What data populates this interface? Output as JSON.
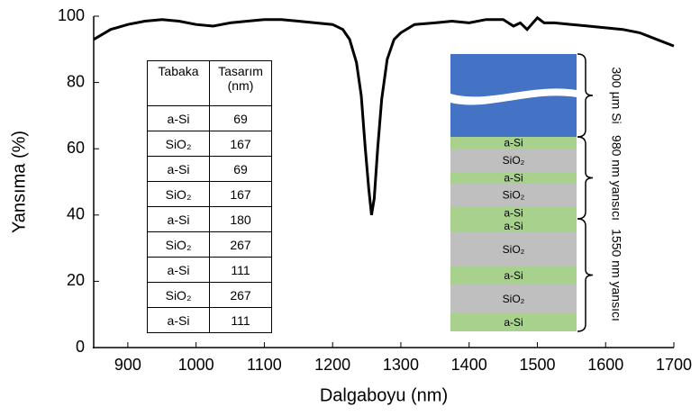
{
  "chart_data": {
    "type": "line",
    "xlabel": "Dalgaboyu (nm)",
    "ylabel": "Yansıma (%)",
    "x": [
      850,
      875,
      900,
      925,
      950,
      975,
      1000,
      1025,
      1050,
      1075,
      1100,
      1125,
      1150,
      1175,
      1200,
      1215,
      1225,
      1235,
      1242,
      1248,
      1253,
      1257,
      1261,
      1266,
      1272,
      1280,
      1290,
      1300,
      1320,
      1350,
      1375,
      1400,
      1425,
      1450,
      1465,
      1475,
      1485,
      1500,
      1510,
      1525,
      1550,
      1575,
      1600,
      1625,
      1650,
      1675,
      1700
    ],
    "values": [
      93,
      96,
      97.5,
      98.5,
      99,
      98.5,
      97.5,
      97,
      98,
      98.5,
      99,
      99,
      98.5,
      98,
      97.5,
      96,
      93,
      86,
      76,
      60,
      48,
      40,
      45,
      60,
      75,
      87,
      93,
      95,
      97.5,
      98,
      98.5,
      98,
      99,
      99,
      97,
      98,
      96,
      99.5,
      98,
      98,
      97.5,
      97,
      96.5,
      96,
      95,
      93,
      91
    ],
    "color": "#000000",
    "xlim": [
      850,
      1700
    ],
    "xticks": [
      900,
      1000,
      1100,
      1200,
      1300,
      1400,
      1500,
      1600,
      1700
    ],
    "ylim": [
      0,
      100
    ],
    "yticks": [
      0,
      20,
      40,
      60,
      80,
      100
    ]
  },
  "inset_table": {
    "columns": [
      "Tabaka",
      "Tasarım (nm)"
    ],
    "rows": [
      [
        "a-Si",
        "69"
      ],
      [
        "SiO₂",
        "167"
      ],
      [
        "a-Si",
        "69"
      ],
      [
        "SiO₂",
        "167"
      ],
      [
        "a-Si",
        "180"
      ],
      [
        "SiO₂",
        "267"
      ],
      [
        "a-Si",
        "111"
      ],
      [
        "SiO₂",
        "267"
      ],
      [
        "a-Si",
        "111"
      ]
    ]
  },
  "diagram": {
    "layers": [
      "a-Si",
      "SiO₂",
      "a-Si",
      "SiO₂",
      "a-Si",
      "a-Si",
      "SiO₂",
      "a-Si",
      "SiO₂",
      "a-Si"
    ],
    "brackets": [
      "300 µm Si",
      "980 nm yansıcı",
      "1550 nm yansıcı"
    ]
  }
}
